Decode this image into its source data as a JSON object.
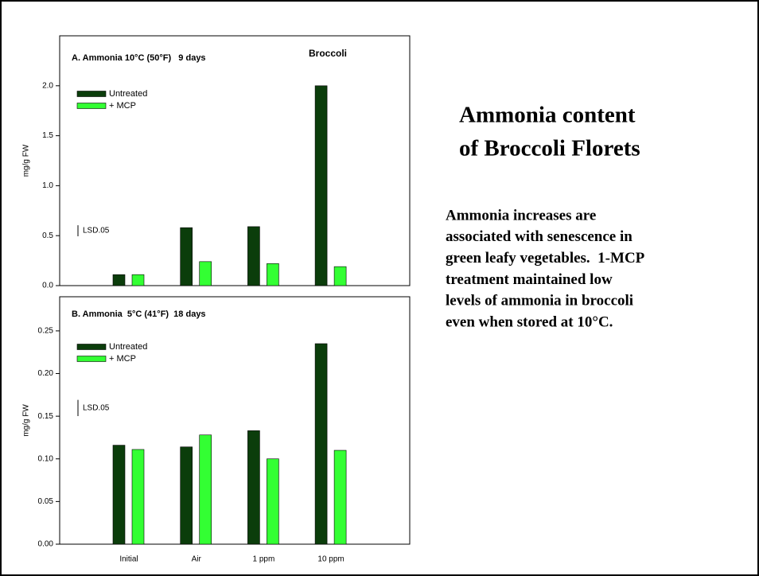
{
  "chart_data": [
    {
      "type": "bar",
      "title": "A. Ammonia 10°C (50°F)   9 days",
      "annotation": "Broccoli",
      "y_label": "mg/g FW",
      "categories": [
        null,
        null,
        null,
        null
      ],
      "series": [
        {
          "name": "Untreated",
          "color": "#0b3d0b",
          "values": [
            0.11,
            0.58,
            0.59,
            2.0
          ]
        },
        {
          "name": "+ MCP",
          "color": "#33ff33",
          "values": [
            0.11,
            0.24,
            0.22,
            0.19
          ]
        }
      ],
      "lsd": 0.11,
      "lsd_label": "LSD.05",
      "ylim": [
        0,
        2.5
      ],
      "yticks": [
        {
          "value": 0,
          "label": "0.0"
        },
        0.5,
        {
          "value": 1,
          "label": "1.0"
        },
        1.5,
        {
          "value": 2,
          "label": "2.0"
        }
      ]
    },
    {
      "type": "bar",
      "title": "B. Ammonia  5°C (41°F)  18 days",
      "y_label": "mg/g FW",
      "categories": [
        "Initial",
        "Air",
        "1 ppm",
        "10 ppm"
      ],
      "series": [
        {
          "name": "Untreated",
          "color": "#0b3d0b",
          "values": [
            0.116,
            0.114,
            0.133,
            0.235
          ]
        },
        {
          "name": "+ MCP",
          "color": "#33ff33",
          "values": [
            0.111,
            0.128,
            0.1,
            0.11
          ]
        }
      ],
      "lsd": 0.019,
      "lsd_label": "LSD.05",
      "ylim": [
        0,
        0.29
      ],
      "yticks": [
        {
          "value": 0,
          "label": "0.00"
        },
        0.05,
        {
          "value": 0.1,
          "label": "0.10"
        },
        0.15,
        {
          "value": 0.2,
          "label": "0.20"
        },
        0.25
      ]
    }
  ],
  "slide": {
    "heading": [
      "Ammonia content",
      "of Broccoli Florets"
    ],
    "body": [
      "Ammonia increases are",
      "associated with senescence in",
      "green leafy vegetables.  1-MCP",
      "treatment maintained low",
      "levels of ammonia in broccoli",
      "even when stored at 10°C."
    ]
  }
}
